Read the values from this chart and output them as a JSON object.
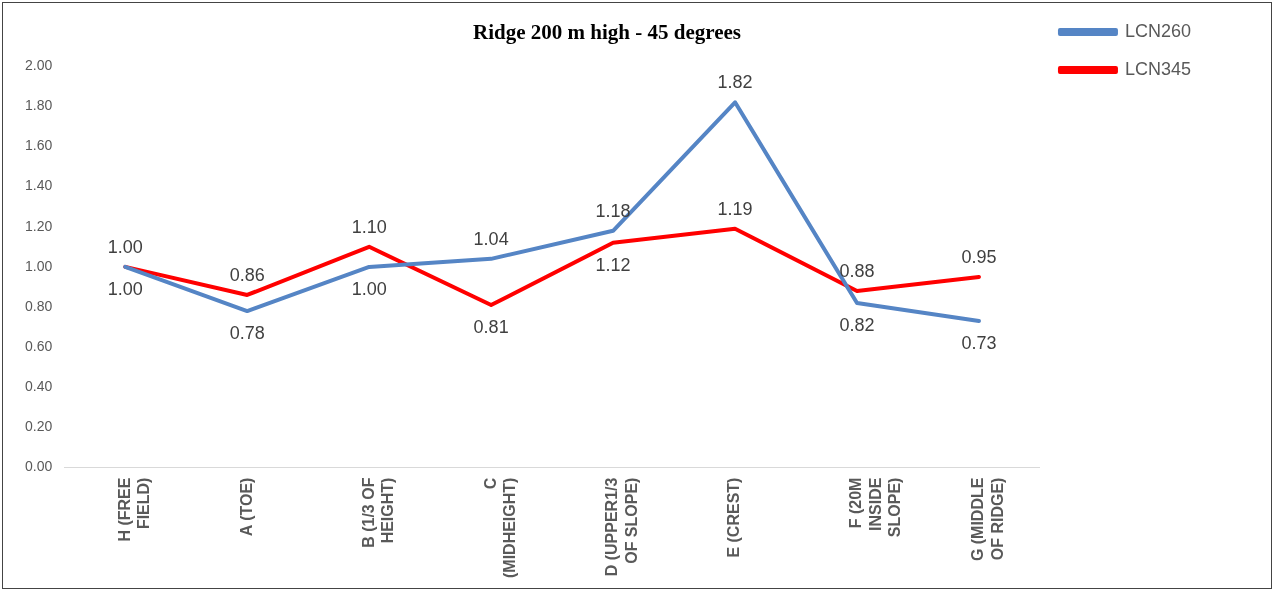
{
  "chart_data": {
    "type": "line",
    "title": "Ridge 200 m high - 45 degrees",
    "categories": [
      "H (FREE FIELD)",
      "A (TOE)",
      "B (1/3 OF HEIGHT)",
      "C (MIDHEIGHT)",
      "D (UPPER1/3 OF SLOPE)",
      "E (CREST)",
      "F (20M INSIDE SLOPE)",
      "G (MIDDLE OF RIDGE)"
    ],
    "series": [
      {
        "name": "LCN260",
        "color": "#5585c5",
        "values": [
          1.0,
          0.78,
          1.0,
          1.04,
          1.18,
          1.82,
          0.82,
          0.73
        ],
        "value_labels": [
          "1.00",
          "0.78",
          "1.00",
          "1.04",
          "1.18",
          "1.82",
          "0.82",
          "0.73"
        ]
      },
      {
        "name": "LCN345",
        "color": "#ff0000",
        "values": [
          1.0,
          0.86,
          1.1,
          0.81,
          1.12,
          1.19,
          0.88,
          0.95
        ],
        "value_labels": [
          "1.00",
          "0.86",
          "1.10",
          "0.81",
          "1.12",
          "1.19",
          "0.88",
          "0.95"
        ]
      }
    ],
    "ylim": [
      0,
      2
    ],
    "yticks": [
      {
        "value": 0,
        "label": "0.00"
      },
      {
        "value": 0.2,
        "label": "0.20"
      },
      {
        "value": 0.4,
        "label": "0.40"
      },
      {
        "value": 0.6,
        "label": "0.60"
      },
      {
        "value": 0.8,
        "label": "0.80"
      },
      {
        "value": 1,
        "label": "1.00"
      },
      {
        "value": 1.2,
        "label": "1.20"
      },
      {
        "value": 1.4,
        "label": "1.40"
      },
      {
        "value": 1.6,
        "label": "1.60"
      },
      {
        "value": 1.8,
        "label": "1.80"
      },
      {
        "value": 2,
        "label": "2.00"
      }
    ],
    "grid": false,
    "legend": "top right",
    "marker": "none",
    "line_style": "solid"
  }
}
